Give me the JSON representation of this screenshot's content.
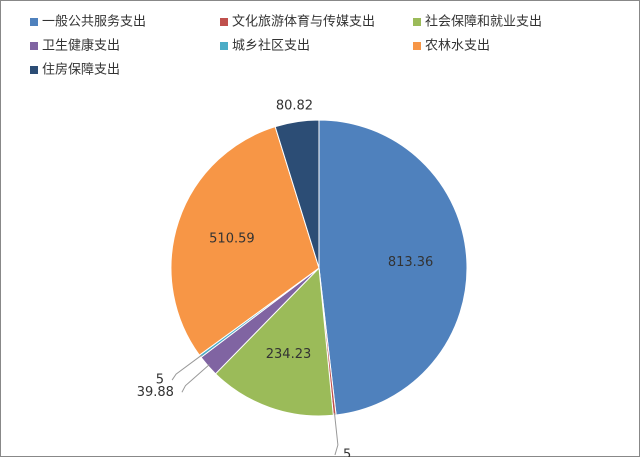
{
  "chart_data": {
    "type": "pie",
    "categories": [
      "一般公共服务支出",
      "文化旅游体育与传媒支出",
      "社会保障和就业支出",
      "卫生健康支出",
      "城乡社区支出",
      "农林水支出",
      "住房保障支出"
    ],
    "values": [
      813.36,
      5,
      234.23,
      39.88,
      5,
      510.59,
      80.82
    ],
    "colors": [
      "#4f81bd",
      "#c0504d",
      "#9bbb59",
      "#8064a2",
      "#4bacc6",
      "#f79646",
      "#2c4d75"
    ],
    "legend": "top"
  }
}
